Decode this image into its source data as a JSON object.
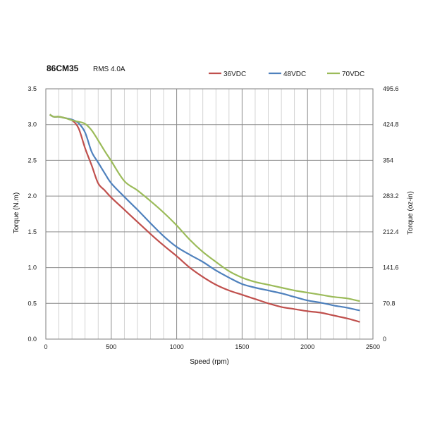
{
  "chart_data": {
    "type": "line",
    "title": "86CM35",
    "subtitle": "RMS 4.0A",
    "xlabel": "Speed (rpm)",
    "ylabel": "Torque (N.m)",
    "y2label": "Torque (oz-in)",
    "xlim": [
      0,
      2500
    ],
    "ylim": [
      0,
      3.5
    ],
    "y2lim": [
      0,
      495.6
    ],
    "xticks": [
      "0",
      "500",
      "1000",
      "1500",
      "2000",
      "2500"
    ],
    "yticks": [
      "0.0",
      "0.5",
      "1.0",
      "1.5",
      "2.0",
      "2.5",
      "3.0",
      "3.5"
    ],
    "y2ticks": [
      "0",
      "70.8",
      "141.6",
      "212.4",
      "283.2",
      "354",
      "424.8",
      "495.6"
    ],
    "grid": true,
    "legend_position": "top-right",
    "series": [
      {
        "name": "36VDC",
        "color": "#c0504d",
        "x": [
          30,
          60,
          100,
          150,
          200,
          250,
          300,
          350,
          400,
          450,
          500,
          600,
          700,
          800,
          900,
          1000,
          1100,
          1200,
          1300,
          1400,
          1500,
          1600,
          1700,
          1800,
          1900,
          2000,
          2100,
          2200,
          2300,
          2400
        ],
        "y": [
          3.14,
          3.11,
          3.11,
          3.09,
          3.06,
          2.95,
          2.67,
          2.43,
          2.18,
          2.08,
          1.98,
          1.81,
          1.64,
          1.47,
          1.31,
          1.16,
          1.0,
          0.87,
          0.76,
          0.68,
          0.62,
          0.56,
          0.5,
          0.45,
          0.42,
          0.39,
          0.37,
          0.33,
          0.29,
          0.24
        ]
      },
      {
        "name": "48VDC",
        "color": "#4f81bd",
        "x": [
          30,
          60,
          100,
          150,
          200,
          250,
          300,
          350,
          400,
          450,
          500,
          600,
          700,
          800,
          900,
          1000,
          1100,
          1200,
          1300,
          1400,
          1500,
          1600,
          1700,
          1800,
          1900,
          2000,
          2100,
          2200,
          2300,
          2400
        ],
        "y": [
          3.14,
          3.11,
          3.11,
          3.09,
          3.07,
          3.02,
          2.89,
          2.62,
          2.47,
          2.32,
          2.18,
          1.99,
          1.81,
          1.62,
          1.44,
          1.29,
          1.18,
          1.08,
          0.96,
          0.86,
          0.77,
          0.72,
          0.68,
          0.64,
          0.59,
          0.54,
          0.51,
          0.47,
          0.44,
          0.4
        ]
      },
      {
        "name": "70VDC",
        "color": "#9bbb59",
        "x": [
          30,
          60,
          100,
          150,
          200,
          250,
          300,
          350,
          400,
          450,
          500,
          600,
          700,
          800,
          900,
          1000,
          1100,
          1200,
          1300,
          1400,
          1500,
          1600,
          1700,
          1800,
          1900,
          2000,
          2100,
          2200,
          2300,
          2400
        ],
        "y": [
          3.14,
          3.11,
          3.11,
          3.09,
          3.06,
          3.04,
          3.01,
          2.92,
          2.78,
          2.63,
          2.49,
          2.21,
          2.08,
          1.93,
          1.77,
          1.59,
          1.39,
          1.22,
          1.08,
          0.95,
          0.86,
          0.8,
          0.76,
          0.72,
          0.68,
          0.65,
          0.62,
          0.59,
          0.57,
          0.53
        ]
      }
    ]
  }
}
